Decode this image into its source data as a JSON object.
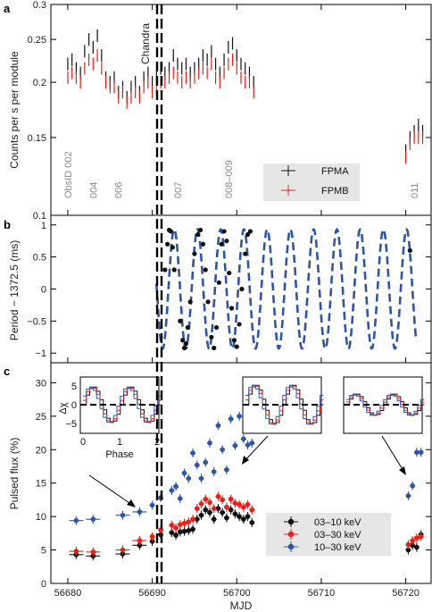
{
  "chart_data": [
    {
      "type": "scatter",
      "panel": "a",
      "ylabel": "Counts per s per module",
      "xlim": [
        56678,
        56723
      ],
      "ylim": [
        0.1,
        0.3
      ],
      "yscale": "log",
      "y_ticks": [
        0.1,
        0.15,
        0.2,
        0.25,
        0.3
      ],
      "y_tick_labels": [
        "0.1",
        "0.15",
        "0.2",
        "0.25",
        "0.3"
      ],
      "annotation": "Chandra",
      "obsid_labels": [
        "ObsID 002",
        "004",
        "006",
        "007",
        "008–009",
        "011"
      ],
      "obsid_x": [
        56680,
        56683,
        56686,
        56693,
        56699,
        56721
      ],
      "legend": {
        "position": "lower-right",
        "entries": [
          "FPMA",
          "FPMB"
        ]
      },
      "colors": {
        "FPMA": "#111111",
        "FPMB": "#e8201a"
      },
      "series": [
        {
          "name": "FPMA",
          "x": [
            56680,
            56680.5,
            56681,
            56681.5,
            56682,
            56682.5,
            56683,
            56683.5,
            56684,
            56684.5,
            56685,
            56685.5,
            56686,
            56686.5,
            56687,
            56687.5,
            56688,
            56688.5,
            56689,
            56689.5,
            56690,
            56690.5,
            56691,
            56691.5,
            56692,
            56692.5,
            56693,
            56693.5,
            56694,
            56694.5,
            56695,
            56695.5,
            56696,
            56696.5,
            56697,
            56697.5,
            56698,
            56698.5,
            56699,
            56699.5,
            56700,
            56700.5,
            56701,
            56701.5,
            56702,
            56720,
            56720.5,
            56721,
            56721.5,
            56722
          ],
          "y": [
            0.22,
            0.225,
            0.215,
            0.21,
            0.235,
            0.25,
            0.24,
            0.255,
            0.23,
            0.205,
            0.2,
            0.205,
            0.19,
            0.195,
            0.185,
            0.195,
            0.2,
            0.19,
            0.205,
            0.21,
            0.2,
            0.205,
            0.215,
            0.21,
            0.215,
            0.23,
            0.22,
            0.215,
            0.22,
            0.21,
            0.215,
            0.22,
            0.23,
            0.225,
            0.235,
            0.22,
            0.21,
            0.225,
            0.24,
            0.245,
            0.23,
            0.22,
            0.215,
            0.21,
            0.2,
            0.14,
            0.15,
            0.155,
            0.16,
            0.155
          ]
        },
        {
          "name": "FPMB",
          "x": [
            56680,
            56680.5,
            56681,
            56681.5,
            56682,
            56682.5,
            56683,
            56683.5,
            56684,
            56684.5,
            56685,
            56685.5,
            56686,
            56686.5,
            56687,
            56687.5,
            56688,
            56688.5,
            56689,
            56689.5,
            56690,
            56690.5,
            56691,
            56691.5,
            56692,
            56692.5,
            56693,
            56693.5,
            56694,
            56694.5,
            56695,
            56695.5,
            56696,
            56696.5,
            56697,
            56697.5,
            56698,
            56698.5,
            56699,
            56699.5,
            56700,
            56700.5,
            56701,
            56701.5,
            56702,
            56720,
            56720.5,
            56721,
            56721.5,
            56722
          ],
          "y": [
            0.205,
            0.21,
            0.205,
            0.2,
            0.215,
            0.225,
            0.22,
            0.23,
            0.215,
            0.2,
            0.195,
            0.195,
            0.185,
            0.19,
            0.18,
            0.185,
            0.19,
            0.185,
            0.195,
            0.2,
            0.19,
            0.195,
            0.2,
            0.2,
            0.205,
            0.21,
            0.205,
            0.2,
            0.205,
            0.2,
            0.205,
            0.21,
            0.215,
            0.21,
            0.22,
            0.205,
            0.2,
            0.21,
            0.22,
            0.225,
            0.215,
            0.205,
            0.2,
            0.2,
            0.19,
            0.135,
            0.145,
            0.15,
            0.15,
            0.15
          ]
        }
      ]
    },
    {
      "type": "line",
      "panel": "b",
      "ylabel": "Period − 1372.5 (ms)",
      "xlim": [
        56678,
        56723
      ],
      "ylim": [
        -1.15,
        1.15
      ],
      "y_ticks": [
        -1,
        -0.5,
        0,
        0.5,
        1
      ],
      "y_tick_labels": [
        "−1",
        "−0.5",
        "0",
        "0.5",
        "1"
      ],
      "model": {
        "amplitude": 0.93,
        "period_days": 2.75,
        "phase_peak_mjd": 56692.6,
        "x_start": 56690.5,
        "x_end": 56721.3,
        "color": "#2f56a6"
      },
      "series": [
        {
          "name": "",
          "x": [
            56691.5,
            56691.8,
            56692.0,
            56692.2,
            56692.4,
            56692.6,
            56693.3,
            56693.6,
            56693.8,
            56694.0,
            56694.2,
            56694.5,
            56695.0,
            56695.4,
            56695.7,
            56696.0,
            56696.3,
            56696.6,
            56697.0,
            56697.3,
            56697.6,
            56697.9,
            56698.2,
            56698.5,
            56698.8,
            56699.1,
            56699.4,
            56699.7,
            56700.0,
            56700.3,
            56700.6,
            56701.0,
            56701.3,
            56701.6,
            56720.5
          ],
          "y": [
            0.3,
            0.7,
            0.92,
            0.9,
            0.65,
            0.3,
            -0.5,
            -0.8,
            -0.92,
            -0.85,
            -0.6,
            -0.2,
            0.55,
            0.85,
            0.92,
            0.7,
            0.3,
            -0.2,
            -0.75,
            -0.92,
            -0.6,
            0.1,
            0.7,
            0.9,
            0.75,
            0.25,
            -0.3,
            -0.8,
            -0.9,
            -0.55,
            0.0,
            0.55,
            0.85,
            0.9,
            0.6
          ]
        }
      ]
    },
    {
      "type": "scatter",
      "panel": "c",
      "xlabel": "MJD",
      "ylabel": "Pulsed flux (%)",
      "xlim": [
        56678,
        56723
      ],
      "ylim": [
        0,
        33
      ],
      "x_ticks": [
        56680,
        56690,
        56700,
        56710,
        56720
      ],
      "x_tick_labels": [
        "56680",
        "56690",
        "56700",
        "56710",
        "56720"
      ],
      "y_ticks": [
        0,
        5,
        10,
        15,
        20,
        25,
        30
      ],
      "y_tick_labels": [
        "0",
        "5",
        "10",
        "15",
        "20",
        "25",
        "30"
      ],
      "legend": {
        "position": "lower-right",
        "entries": [
          "03–10 keV",
          "03–30 keV",
          "10–30 keV"
        ]
      },
      "colors": {
        "03–10 keV": "#111111",
        "03–30 keV": "#e8201a",
        "10–30 keV": "#2f56a6"
      },
      "series": [
        {
          "name": "03–10 keV",
          "x": [
            56681,
            56683,
            56686.5,
            56688.5,
            56690,
            56691,
            56692.3,
            56692.8,
            56693.3,
            56693.8,
            56694.3,
            56694.8,
            56695.3,
            56695.8,
            56696.3,
            56696.8,
            56697.3,
            56697.8,
            56698.3,
            56698.8,
            56699.3,
            56699.8,
            56700.3,
            56700.8,
            56701.3,
            56701.8,
            56720.3,
            56720.8,
            56721.3,
            56721.8
          ],
          "y": [
            4.3,
            4.1,
            4.4,
            5.7,
            6.3,
            7.3,
            7.6,
            7.2,
            7.7,
            7.8,
            7.9,
            8.1,
            9.6,
            10.2,
            11.0,
            10.6,
            9.6,
            11.2,
            10.6,
            9.8,
            11.0,
            10.4,
            10.0,
            9.6,
            10.0,
            9.1,
            5.0,
            5.7,
            5.4,
            7.3
          ]
        },
        {
          "name": "03–30 keV",
          "x": [
            56681,
            56683,
            56686.5,
            56688.5,
            56690,
            56691,
            56692.3,
            56692.8,
            56693.3,
            56693.8,
            56694.3,
            56694.8,
            56695.3,
            56695.8,
            56696.3,
            56696.8,
            56697.3,
            56697.8,
            56698.3,
            56698.8,
            56699.3,
            56699.8,
            56700.3,
            56700.8,
            56701.3,
            56701.8,
            56720.3,
            56720.8,
            56721.3,
            56721.8
          ],
          "y": [
            4.8,
            4.7,
            5.0,
            6.4,
            7.0,
            8.0,
            8.7,
            8.3,
            8.8,
            9.0,
            9.2,
            9.6,
            11.2,
            11.9,
            12.6,
            12.1,
            11.2,
            13.0,
            12.5,
            11.4,
            12.6,
            12.0,
            11.8,
            11.4,
            11.8,
            11.0,
            5.8,
            6.4,
            6.8,
            7.0
          ]
        },
        {
          "name": "10–30 keV",
          "x": [
            56681,
            56683,
            56686.5,
            56688.5,
            56690,
            56691,
            56692.3,
            56692.8,
            56693.3,
            56693.8,
            56694.3,
            56694.8,
            56695.3,
            56695.8,
            56696.3,
            56696.8,
            56697.3,
            56697.8,
            56698.3,
            56698.8,
            56699.3,
            56699.8,
            56700.3,
            56700.8,
            56701.3,
            56701.8,
            56720.3,
            56720.8,
            56721.3,
            56721.8
          ],
          "y": [
            9.4,
            9.6,
            10.2,
            10.7,
            11.7,
            12.8,
            13.9,
            14.5,
            12.7,
            16.5,
            15.7,
            19.5,
            17.7,
            15.7,
            18.1,
            21.0,
            16.7,
            23.6,
            20.0,
            17.0,
            24.6,
            20.6,
            25.0,
            21.6,
            20.7,
            21.0,
            13.1,
            14.6,
            19.6,
            19.6
          ]
        }
      ],
      "insets": [
        {
          "ylabel": "Δχ",
          "xlabel": "Phase",
          "x_tick_labels": [
            "0",
            "1",
            "2"
          ],
          "y_tick_labels": [
            "5",
            "0",
            "−5"
          ]
        },
        {},
        {}
      ]
    }
  ]
}
